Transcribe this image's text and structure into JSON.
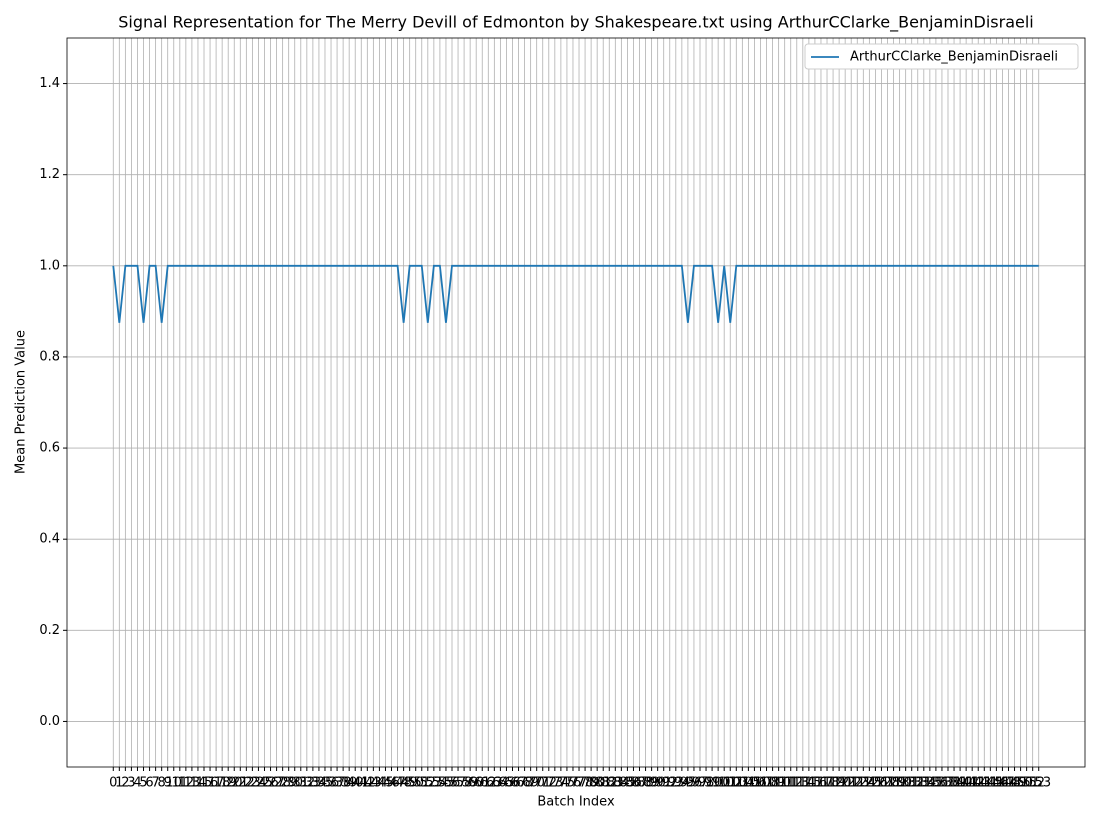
{
  "chart_data": {
    "type": "line",
    "title": "Signal Representation for The Merry Devill of Edmonton by Shakespeare.txt using ArthurCClarke_BenjaminDisraeli",
    "xlabel": "Batch Index",
    "ylabel": "Mean Prediction Value",
    "x": [
      0,
      1,
      2,
      3,
      4,
      5,
      6,
      7,
      8,
      9,
      10,
      11,
      12,
      13,
      14,
      15,
      16,
      17,
      18,
      19,
      20,
      21,
      22,
      23,
      24,
      25,
      26,
      27,
      28,
      29,
      30,
      31,
      32,
      33,
      34,
      35,
      36,
      37,
      38,
      39,
      40,
      41,
      42,
      43,
      44,
      45,
      46,
      47,
      48,
      49,
      50,
      51,
      52,
      53,
      54,
      55,
      56,
      57,
      58,
      59,
      60,
      61,
      62,
      63,
      64,
      65,
      66,
      67,
      68,
      69,
      70,
      71,
      72,
      73,
      74,
      75,
      76,
      77,
      78,
      79,
      80,
      81,
      82,
      83,
      84,
      85,
      86,
      87,
      88,
      89,
      90,
      91,
      92,
      93,
      94,
      95,
      96,
      97,
      98,
      99,
      100,
      101,
      102,
      103,
      104,
      105,
      106,
      107,
      108,
      109,
      110,
      111,
      112,
      113,
      114,
      115,
      116,
      117,
      118,
      119,
      120,
      121,
      122,
      123,
      124,
      125,
      126,
      127,
      128,
      129,
      130,
      131,
      132,
      133,
      134,
      135,
      136,
      137,
      138,
      139,
      140,
      141,
      142,
      143,
      144,
      145,
      146,
      147,
      148,
      149,
      150,
      151,
      152,
      153
    ],
    "series": [
      {
        "name": "ArthurCClarke_BenjaminDisraeli",
        "color": "#1f77b4",
        "values": [
          1,
          0.875,
          1,
          1,
          1,
          0.875,
          1,
          1,
          0.875,
          1,
          1,
          1,
          1,
          1,
          1,
          1,
          1,
          1,
          1,
          1,
          1,
          1,
          1,
          1,
          1,
          1,
          1,
          1,
          1,
          1,
          1,
          1,
          1,
          1,
          1,
          1,
          1,
          1,
          1,
          1,
          1,
          1,
          1,
          1,
          1,
          1,
          1,
          1,
          0.875,
          1,
          1,
          1,
          0.875,
          1,
          1,
          0.875,
          1,
          1,
          1,
          1,
          1,
          1,
          1,
          1,
          1,
          1,
          1,
          1,
          1,
          1,
          1,
          1,
          1,
          1,
          1,
          1,
          1,
          1,
          1,
          1,
          1,
          1,
          1,
          1,
          1,
          1,
          1,
          1,
          1,
          1,
          1,
          1,
          1,
          1,
          1,
          0.875,
          1,
          1,
          1,
          1,
          0.875,
          1,
          0.875,
          1,
          1,
          1,
          1,
          1,
          1,
          1,
          1,
          1,
          1,
          1,
          1,
          1,
          1,
          1,
          1,
          1,
          1,
          1,
          1,
          1,
          1,
          1,
          1,
          1,
          1,
          1,
          1,
          1,
          1,
          1,
          1,
          1,
          1,
          1,
          1,
          1,
          1,
          1,
          1,
          1,
          1,
          1,
          1,
          1,
          1,
          1,
          1,
          1,
          1,
          1
        ]
      }
    ],
    "xlim": [
      -7.65,
      160.65
    ],
    "xticks": [
      0,
      1,
      2,
      3,
      4,
      5,
      6,
      7,
      8,
      9,
      10,
      11,
      12,
      13,
      14,
      15,
      16,
      17,
      18,
      19,
      20,
      21,
      22,
      23,
      24,
      25,
      26,
      27,
      28,
      29,
      30,
      31,
      32,
      33,
      34,
      35,
      36,
      37,
      38,
      39,
      40,
      41,
      42,
      43,
      44,
      45,
      46,
      47,
      48,
      49,
      50,
      51,
      52,
      53,
      54,
      55,
      56,
      57,
      58,
      59,
      60,
      61,
      62,
      63,
      64,
      65,
      66,
      67,
      68,
      69,
      70,
      71,
      72,
      73,
      74,
      75,
      76,
      77,
      78,
      79,
      80,
      81,
      82,
      83,
      84,
      85,
      86,
      87,
      88,
      89,
      90,
      91,
      92,
      93,
      94,
      95,
      96,
      97,
      98,
      99,
      100,
      101,
      102,
      103,
      104,
      105,
      106,
      107,
      108,
      109,
      110,
      111,
      112,
      113,
      114,
      115,
      116,
      117,
      118,
      119,
      120,
      121,
      122,
      123,
      124,
      125,
      126,
      127,
      128,
      129,
      130,
      131,
      132,
      133,
      134,
      135,
      136,
      137,
      138,
      139,
      140,
      141,
      142,
      143,
      144,
      145,
      146,
      147,
      148,
      149,
      150,
      151,
      152,
      153
    ],
    "ylim": [
      -0.1,
      1.5
    ],
    "yticks": [
      {
        "value": 0,
        "label": "0.0"
      },
      {
        "value": 0.2,
        "label": "0.2"
      },
      {
        "value": 0.4,
        "label": "0.4"
      },
      {
        "value": 0.6,
        "label": "0.6"
      },
      {
        "value": 0.8,
        "label": "0.8"
      },
      {
        "value": 1,
        "label": "1.0"
      },
      {
        "value": 1.2,
        "label": "1.2"
      },
      {
        "value": 1.4,
        "label": "1.4"
      }
    ],
    "grid": true,
    "legend": "upper right"
  }
}
